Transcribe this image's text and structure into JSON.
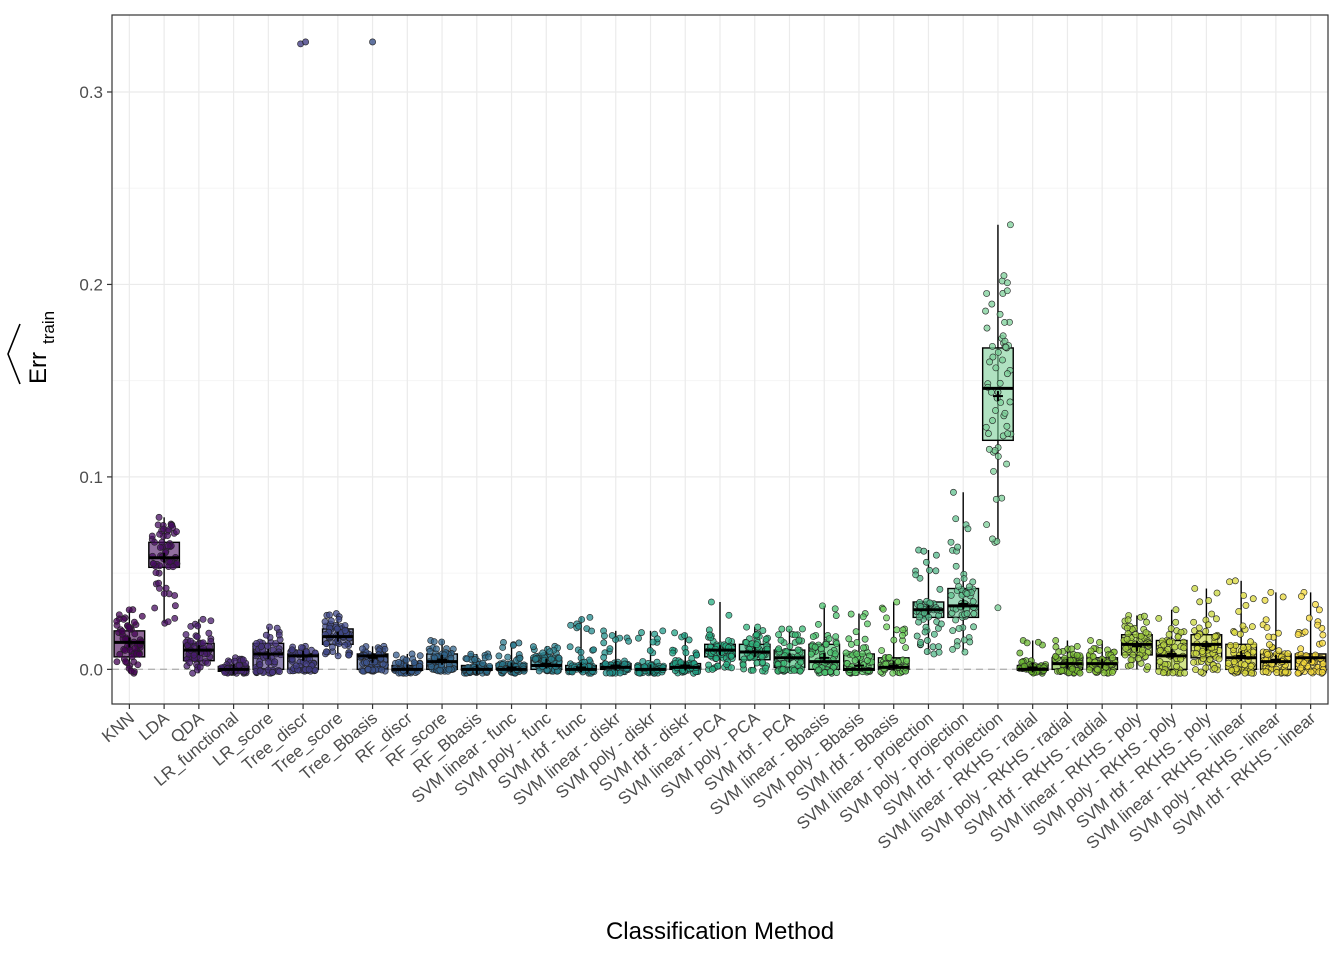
{
  "chart_data": {
    "type": "boxplot",
    "xlabel": "Classification Method",
    "ylabel_main": "Err",
    "ylabel_sub": "train",
    "ylim": [
      -0.018,
      0.34
    ],
    "yticks": [
      0.0,
      0.1,
      0.2,
      0.3
    ],
    "ytick_labels": [
      "0.0",
      "0.1",
      "0.2",
      "0.3"
    ],
    "reference_line": 0.0,
    "grid": true,
    "legend": "none",
    "methods": [
      {
        "name": "KNN",
        "q1": 0.0065,
        "median": 0.014,
        "q3": 0.02,
        "mean": 0.014,
        "min": -0.002,
        "max": 0.031,
        "outliers": [],
        "color": "#440154"
      },
      {
        "name": "LDA",
        "q1": 0.053,
        "median": 0.058,
        "q3": 0.066,
        "mean": 0.058,
        "min": 0.024,
        "max": 0.079,
        "outliers": [],
        "color": "#470e61"
      },
      {
        "name": "QDA",
        "q1": 0.0045,
        "median": 0.01,
        "q3": 0.0135,
        "mean": 0.01,
        "min": -0.002,
        "max": 0.026,
        "outliers": [],
        "color": "#481b6d"
      },
      {
        "name": "LR_functional",
        "q1": -0.001,
        "median": 0.0,
        "q3": 0.0015,
        "mean": 0.0,
        "min": -0.002,
        "max": 0.006,
        "outliers": [],
        "color": "#482777"
      },
      {
        "name": "LR_score",
        "q1": 0.0,
        "median": 0.008,
        "q3": 0.0135,
        "mean": 0.008,
        "min": -0.002,
        "max": 0.022,
        "outliers": [],
        "color": "#46337e"
      },
      {
        "name": "Tree_discr",
        "q1": 0.0,
        "median": 0.007,
        "q3": 0.008,
        "mean": 0.007,
        "min": -0.001,
        "max": 0.012,
        "outliers": [
          0.325,
          0.326
        ],
        "color": "#433e85"
      },
      {
        "name": "Tree_score",
        "q1": 0.013,
        "median": 0.017,
        "q3": 0.021,
        "mean": 0.017,
        "min": 0.007,
        "max": 0.029,
        "outliers": [],
        "color": "#3f4889"
      },
      {
        "name": "Tree_Bbasis",
        "q1": 0.0,
        "median": 0.007,
        "q3": 0.008,
        "mean": 0.006,
        "min": -0.001,
        "max": 0.012,
        "outliers": [
          0.326
        ],
        "color": "#3b528b"
      },
      {
        "name": "RF_discr",
        "q1": -0.0005,
        "median": 0.0,
        "q3": 0.002,
        "mean": 0.0,
        "min": -0.002,
        "max": 0.008,
        "outliers": [],
        "color": "#365c8d"
      },
      {
        "name": "RF_score",
        "q1": 0.0,
        "median": 0.004,
        "q3": 0.008,
        "mean": 0.005,
        "min": -0.001,
        "max": 0.015,
        "outliers": [],
        "color": "#31668e"
      },
      {
        "name": "RF_Bbasis",
        "q1": -0.0005,
        "median": 0.0,
        "q3": 0.002,
        "mean": 0.0,
        "min": -0.002,
        "max": 0.008,
        "outliers": [],
        "color": "#2e6f8e"
      },
      {
        "name": "SVM linear - func",
        "q1": 0.0,
        "median": 0.0,
        "q3": 0.003,
        "mean": 0.001,
        "min": -0.002,
        "max": 0.014,
        "outliers": [],
        "color": "#2a788e"
      },
      {
        "name": "SVM poly - func",
        "q1": 0.0,
        "median": 0.002,
        "q3": 0.006,
        "mean": 0.003,
        "min": -0.001,
        "max": 0.012,
        "outliers": [],
        "color": "#27808e"
      },
      {
        "name": "SVM rbf - func",
        "q1": -0.0005,
        "median": 0.0,
        "q3": 0.002,
        "mean": 0.001,
        "min": -0.002,
        "max": 0.027,
        "outliers": [],
        "color": "#23898e"
      },
      {
        "name": "SVM linear - diskr",
        "q1": 0.0,
        "median": 0.001,
        "q3": 0.003,
        "mean": 0.002,
        "min": -0.002,
        "max": 0.02,
        "outliers": [],
        "color": "#21918c"
      },
      {
        "name": "SVM poly - diskr",
        "q1": -0.0005,
        "median": 0.0,
        "q3": 0.002,
        "mean": 0.0,
        "min": -0.002,
        "max": 0.02,
        "outliers": [],
        "color": "#1f9a8a"
      },
      {
        "name": "SVM rbf - diskr",
        "q1": 0.0,
        "median": 0.001,
        "q3": 0.003,
        "mean": 0.002,
        "min": -0.002,
        "max": 0.019,
        "outliers": [],
        "color": "#20a386"
      },
      {
        "name": "SVM linear - PCA",
        "q1": 0.0065,
        "median": 0.01,
        "q3": 0.013,
        "mean": 0.01,
        "min": 0.0,
        "max": 0.035,
        "outliers": [],
        "color": "#26ad81"
      },
      {
        "name": "SVM poly - PCA",
        "q1": 0.005,
        "median": 0.009,
        "q3": 0.013,
        "mean": 0.009,
        "min": -0.001,
        "max": 0.022,
        "outliers": [],
        "color": "#2fb47c"
      },
      {
        "name": "SVM rbf - PCA",
        "q1": 0.001,
        "median": 0.006,
        "q3": 0.01,
        "mean": 0.006,
        "min": -0.001,
        "max": 0.021,
        "outliers": [],
        "color": "#3bbb75"
      },
      {
        "name": "SVM linear - Bbasis",
        "q1": 0.0,
        "median": 0.004,
        "q3": 0.013,
        "mean": 0.006,
        "min": -0.002,
        "max": 0.033,
        "outliers": [],
        "color": "#4ac16d"
      },
      {
        "name": "SVM poly - Bbasis",
        "q1": -0.0005,
        "median": 0.0,
        "q3": 0.008,
        "mean": 0.002,
        "min": -0.002,
        "max": 0.029,
        "outliers": [],
        "color": "#5ac864"
      },
      {
        "name": "SVM rbf - Bbasis",
        "q1": 0.0,
        "median": 0.001,
        "q3": 0.006,
        "mean": 0.002,
        "min": -0.002,
        "max": 0.035,
        "outliers": [],
        "color": "#6ccd5a"
      },
      {
        "name": "SVM linear - projection",
        "q1": 0.027,
        "median": 0.031,
        "q3": 0.035,
        "mean": 0.031,
        "min": 0.008,
        "max": 0.062,
        "outliers": [],
        "color": "#52b788"
      },
      {
        "name": "SVM poly - projection",
        "q1": 0.027,
        "median": 0.033,
        "q3": 0.042,
        "mean": 0.034,
        "min": 0.009,
        "max": 0.092,
        "outliers": [],
        "color": "#60c08e"
      },
      {
        "name": "SVM rbf - projection",
        "q1": 0.119,
        "median": 0.146,
        "q3": 0.167,
        "mean": 0.142,
        "min": 0.066,
        "max": 0.231,
        "outliers": [
          0.032
        ],
        "color": "#7ccf98"
      },
      {
        "name": "SVM linear - RKHS - radial",
        "q1": -0.0005,
        "median": 0.0,
        "q3": 0.002,
        "mean": 0.001,
        "min": -0.002,
        "max": 0.015,
        "outliers": [],
        "color": "#67b32e"
      },
      {
        "name": "SVM poly - RKHS - radial",
        "q1": 0.0,
        "median": 0.003,
        "q3": 0.006,
        "mean": 0.003,
        "min": -0.002,
        "max": 0.015,
        "outliers": [],
        "color": "#78bc32"
      },
      {
        "name": "SVM rbf - RKHS - radial",
        "q1": 0.0,
        "median": 0.003,
        "q3": 0.006,
        "mean": 0.003,
        "min": -0.002,
        "max": 0.015,
        "outliers": [],
        "color": "#8ac538"
      },
      {
        "name": "SVM linear - RKHS - poly",
        "q1": 0.0075,
        "median": 0.013,
        "q3": 0.018,
        "mean": 0.012,
        "min": 0.0,
        "max": 0.028,
        "outliers": [],
        "color": "#a0cc3c"
      },
      {
        "name": "SVM poly - RKHS - poly",
        "q1": 0.0,
        "median": 0.007,
        "q3": 0.015,
        "mean": 0.008,
        "min": -0.002,
        "max": 0.031,
        "outliers": [],
        "color": "#b5d33e"
      },
      {
        "name": "SVM rbf - RKHS - poly",
        "q1": 0.006,
        "median": 0.013,
        "q3": 0.018,
        "mean": 0.012,
        "min": -0.002,
        "max": 0.042,
        "outliers": [],
        "color": "#c8d63c"
      },
      {
        "name": "SVM linear - RKHS - linear",
        "q1": 0.0,
        "median": 0.006,
        "q3": 0.013,
        "mean": 0.007,
        "min": -0.002,
        "max": 0.046,
        "outliers": [],
        "color": "#d9d83a"
      },
      {
        "name": "SVM poly - RKHS - linear",
        "q1": 0.0,
        "median": 0.004,
        "q3": 0.008,
        "mean": 0.005,
        "min": -0.002,
        "max": 0.04,
        "outliers": [],
        "color": "#e8d83a"
      },
      {
        "name": "SVM rbf - RKHS - linear",
        "q1": 0.0,
        "median": 0.006,
        "q3": 0.008,
        "mean": 0.006,
        "min": -0.002,
        "max": 0.04,
        "outliers": [],
        "color": "#f5da3b"
      }
    ]
  }
}
